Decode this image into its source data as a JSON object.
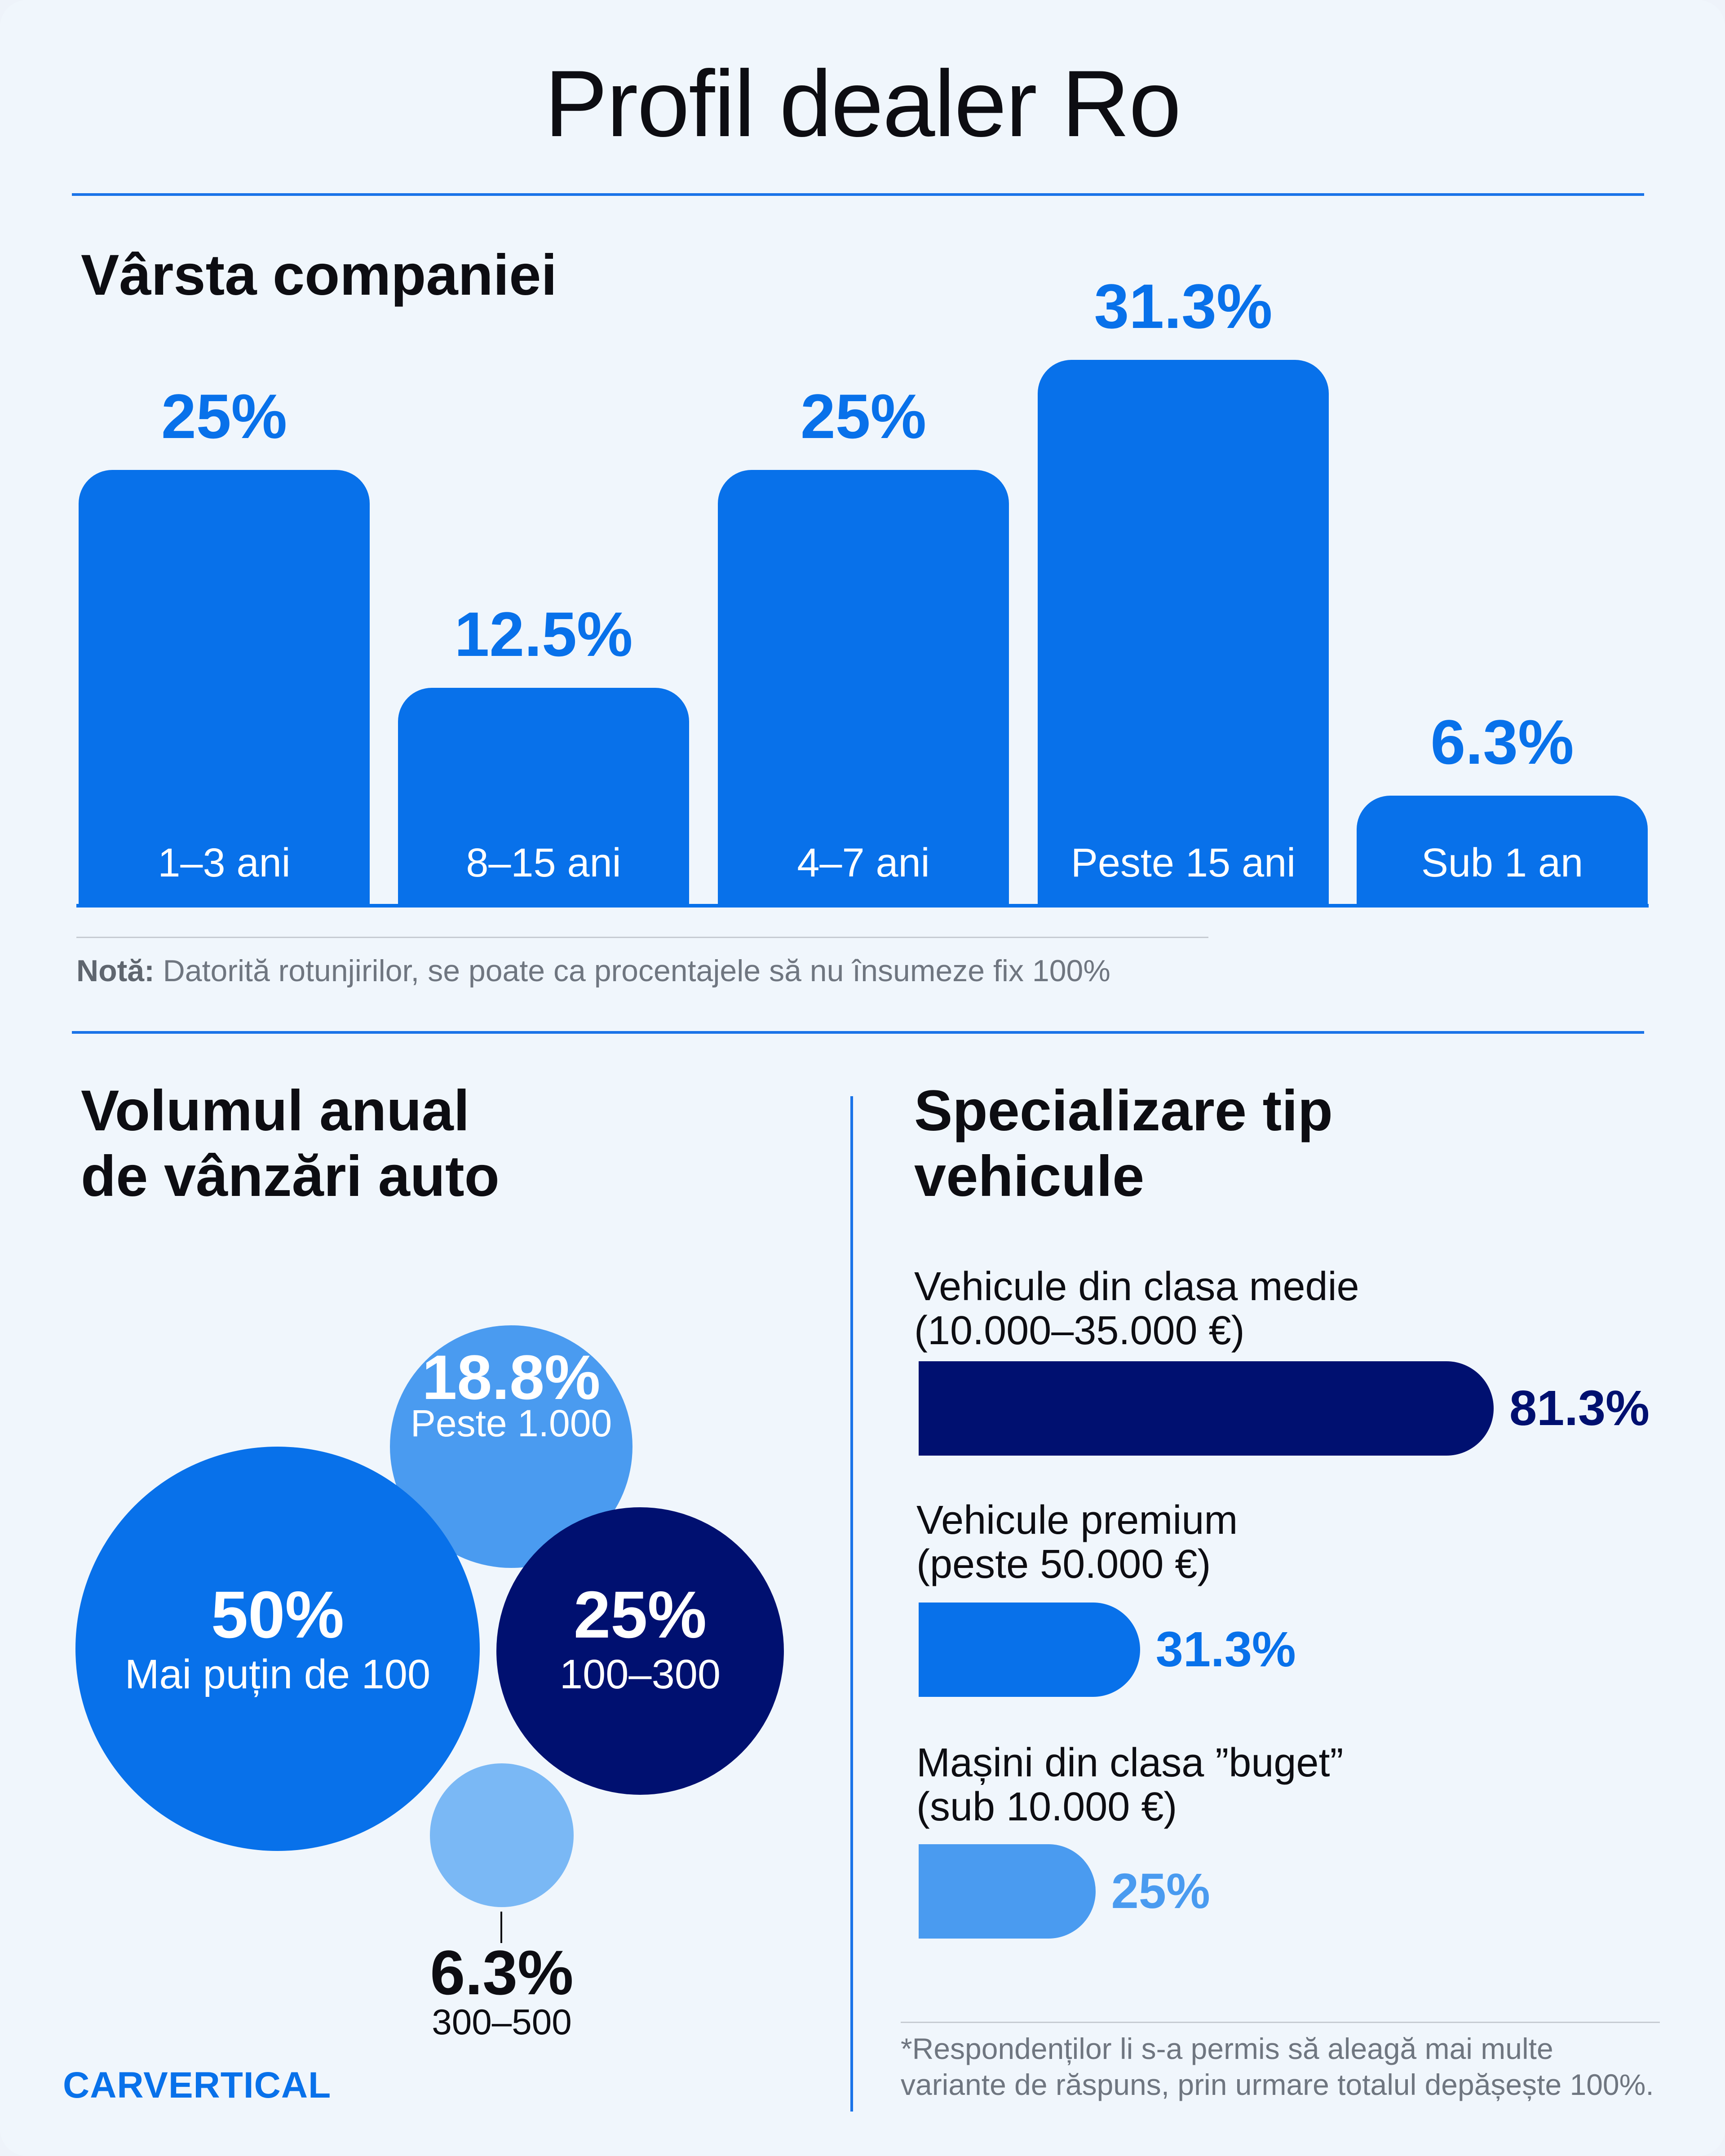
{
  "title": "Profil dealer Ro",
  "age_section": {
    "title": "Vârsta companiei",
    "note_label": "Notă:",
    "note_text": " Datorită rotunjirilor, se poate ca procentajele să nu însumeze fix 100%"
  },
  "volume_section": {
    "title_line1": "Volumul anual",
    "title_line2": "de vânzări auto"
  },
  "spec_section": {
    "title_line1": "Specializare tip",
    "title_line2": "vehicule",
    "footnote_line1": "*Respondenților li s-a permis să aleagă mai multe",
    "footnote_line2": "variante de răspuns, prin urmare totalul depășește 100%."
  },
  "brand": "CARVERTICAL",
  "colors": {
    "primary": "#0871ea",
    "navy": "#001070",
    "medium": "#4a9bf0",
    "light": "#7ab8f5"
  },
  "chart_data": [
    {
      "type": "bar",
      "title": "Vârsta companiei",
      "categories": [
        "1–3 ani",
        "8–15 ani",
        "4–7 ani",
        "Peste 15 ani",
        "Sub 1 an"
      ],
      "values": [
        25,
        12.5,
        25,
        31.3,
        6.3
      ],
      "value_labels": [
        "25%",
        "12.5%",
        "25%",
        "31.3%",
        "6.3%"
      ],
      "ylim": [
        0,
        31.3
      ]
    },
    {
      "type": "bubble",
      "title": "Volumul anual de vânzări auto",
      "categories": [
        "Mai puțin de 100",
        "100–300",
        "Peste 1.000",
        "300–500"
      ],
      "values": [
        50,
        25,
        18.8,
        6.3
      ],
      "value_labels": [
        "50%",
        "25%",
        "18.8%",
        "6.3%"
      ]
    },
    {
      "type": "bar",
      "orientation": "horizontal",
      "title": "Specializare tip vehicule",
      "categories": [
        {
          "name": "Vehicule din clasa medie",
          "range": "(10.000–35.000 €)"
        },
        {
          "name": "Vehicule premium",
          "range": "(peste 50.000 €)"
        },
        {
          "name": "Mașini din clasa ”buget”",
          "range": "(sub 10.000 €)"
        }
      ],
      "values": [
        81.3,
        31.3,
        25
      ],
      "value_labels": [
        "81.3%",
        "31.3%",
        "25%"
      ],
      "xlim": [
        0,
        81.3
      ]
    }
  ]
}
